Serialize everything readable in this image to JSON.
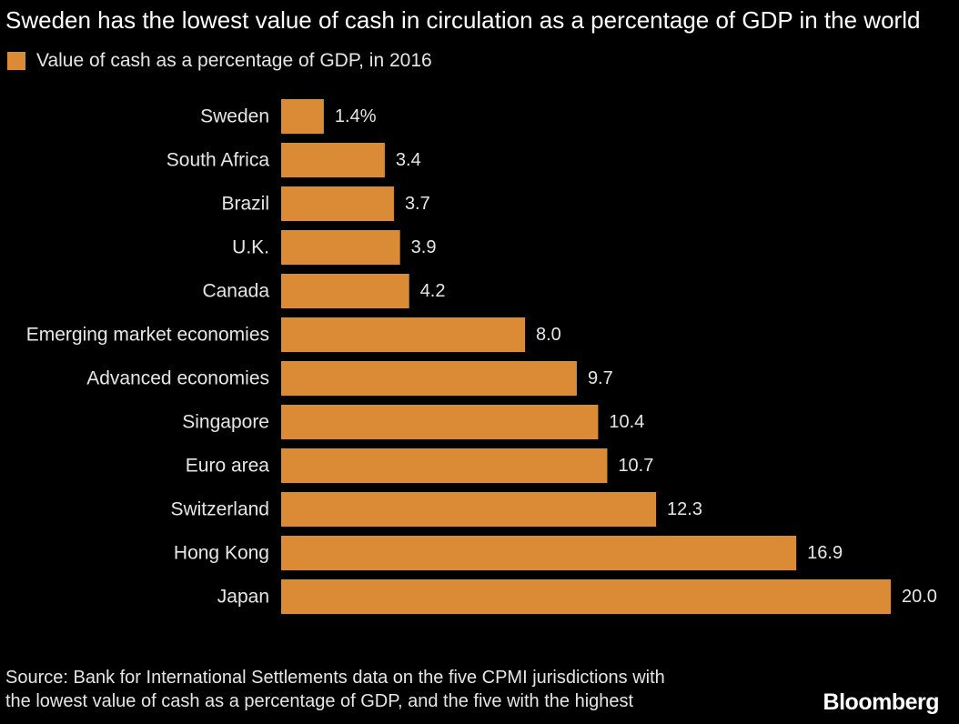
{
  "chart_data": {
    "type": "bar",
    "orientation": "horizontal",
    "title": "Sweden has the lowest value of cash in circulation as a percentage of GDP in the world",
    "legend": [
      {
        "label": "Value of cash as a percentage of GDP, in 2016",
        "color": "#DB8B35"
      }
    ],
    "legend_position": "top-left",
    "categories": [
      "Sweden",
      "South Africa",
      "Brazil",
      "U.K.",
      "Canada",
      "Emerging market economies",
      "Advanced economies",
      "Singapore",
      "Euro area",
      "Switzerland",
      "Hong Kong",
      "Japan"
    ],
    "values": [
      1.4,
      3.4,
      3.7,
      3.9,
      4.2,
      8.0,
      9.7,
      10.4,
      10.7,
      12.3,
      16.9,
      20.0
    ],
    "data_labels": [
      "1.4%",
      "3.4",
      "3.7",
      "3.9",
      "4.2",
      "8.0",
      "9.7",
      "10.4",
      "10.7",
      "12.3",
      "16.9",
      "20.0"
    ],
    "xlim": [
      0,
      20
    ],
    "grid": false,
    "bar_color": "#DB8B35"
  },
  "source": {
    "line1": "Source: Bank for International Settlements data on the five CPMI jurisdictions with",
    "line2": "the lowest value of cash as a percentage of GDP, and the five with the highest"
  },
  "logo": "Bloomberg"
}
